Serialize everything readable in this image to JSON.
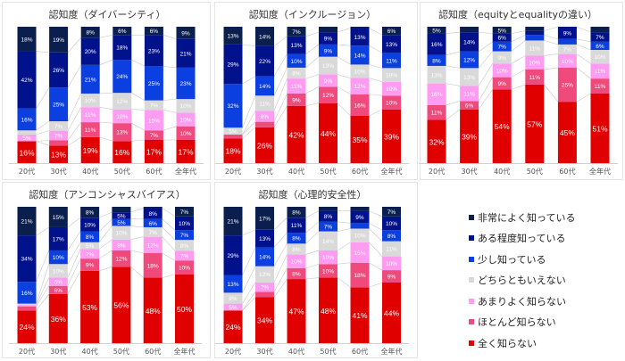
{
  "chart_data": [
    {
      "type": "bar",
      "stacked": true,
      "title": "認知度（ダイバーシティ）",
      "categories": [
        "20代",
        "30代",
        "40代",
        "50代",
        "60代",
        "全年代"
      ],
      "series": [
        {
          "name": "全く知らない",
          "values": [
            16,
            13,
            19,
            16,
            17,
            17
          ]
        },
        {
          "name": "ほとんど知らない",
          "values": [
            0,
            4,
            11,
            13,
            7,
            10
          ]
        },
        {
          "name": "あまりよく知らない",
          "values": [
            5,
            7,
            11,
            10,
            15,
            10
          ]
        },
        {
          "name": "どちらともいえない",
          "values": [
            3,
            7,
            10,
            12,
            7,
            10
          ]
        },
        {
          "name": "少し知っている",
          "values": [
            16,
            25,
            21,
            24,
            25,
            23
          ]
        },
        {
          "name": "ある程度知っている",
          "values": [
            42,
            26,
            20,
            18,
            23,
            21
          ]
        },
        {
          "name": "非常によく知っている",
          "values": [
            18,
            19,
            8,
            6,
            6,
            9
          ]
        }
      ],
      "ylim": [
        0,
        100
      ],
      "unit": "%"
    },
    {
      "type": "bar",
      "stacked": true,
      "title": "認知度（インクルージョン）",
      "categories": [
        "20代",
        "30代",
        "40代",
        "50代",
        "60代",
        "全年代"
      ],
      "series": [
        {
          "name": "全く知らない",
          "values": [
            18,
            26,
            42,
            44,
            35,
            39
          ]
        },
        {
          "name": "ほとんど知らない",
          "values": [
            3,
            4,
            9,
            12,
            16,
            10
          ]
        },
        {
          "name": "あまりよく知らない",
          "values": [
            0,
            8,
            11,
            9,
            12,
            10
          ]
        },
        {
          "name": "どちらともいえない",
          "values": [
            5,
            11,
            8,
            13,
            10,
            10
          ]
        },
        {
          "name": "少し知っている",
          "values": [
            32,
            14,
            10,
            9,
            14,
            11
          ]
        },
        {
          "name": "ある程度知っている",
          "values": [
            29,
            22,
            13,
            9,
            13,
            13
          ]
        },
        {
          "name": "非常によく知っている",
          "values": [
            13,
            14,
            7,
            4,
            1,
            6
          ]
        }
      ],
      "ylim": [
        0,
        100
      ],
      "unit": "%"
    },
    {
      "type": "bar",
      "stacked": true,
      "title": "認知度（equityとequalityの違い）",
      "categories": [
        "20代",
        "30代",
        "40代",
        "50代",
        "60代",
        "全年代"
      ],
      "series": [
        {
          "name": "全く知らない",
          "values": [
            32,
            39,
            54,
            57,
            45,
            51
          ]
        },
        {
          "name": "ほとんど知らない",
          "values": [
            11,
            6,
            9,
            11,
            25,
            11
          ]
        },
        {
          "name": "あまりよく知らない",
          "values": [
            16,
            11,
            10,
            10,
            10,
            11
          ]
        },
        {
          "name": "どちらともいえない",
          "values": [
            13,
            13,
            9,
            11,
            7,
            10
          ]
        },
        {
          "name": "少し知っている",
          "values": [
            8,
            12,
            7,
            4,
            4,
            6
          ]
        },
        {
          "name": "ある程度知っている",
          "values": [
            16,
            14,
            6,
            3,
            9,
            7
          ]
        },
        {
          "name": "非常によく知っている",
          "values": [
            5,
            4,
            5,
            3,
            0,
            4
          ]
        }
      ],
      "ylim": [
        0,
        100
      ],
      "unit": "%"
    },
    {
      "type": "bar",
      "stacked": true,
      "title": "認知度（アンコンシャスバイアス）",
      "categories": [
        "20代",
        "30代",
        "40代",
        "50代",
        "60代",
        "全年代"
      ],
      "series": [
        {
          "name": "全く知らない",
          "values": [
            24,
            36,
            53,
            56,
            48,
            50
          ]
        },
        {
          "name": "ほとんど知らない",
          "values": [
            3,
            6,
            9,
            12,
            18,
            10
          ]
        },
        {
          "name": "あまりよく知らない",
          "values": [
            1,
            6,
            7,
            8,
            12,
            7
          ]
        },
        {
          "name": "どちらともいえない",
          "values": [
            1,
            10,
            5,
            10,
            7,
            8
          ]
        },
        {
          "name": "少し知っている",
          "values": [
            16,
            10,
            8,
            5,
            6,
            7
          ]
        },
        {
          "name": "ある程度知っている",
          "values": [
            34,
            17,
            10,
            5,
            8,
            10
          ]
        },
        {
          "name": "非常によく知っている",
          "values": [
            21,
            15,
            8,
            4,
            1,
            7
          ]
        }
      ],
      "ylim": [
        0,
        100
      ],
      "unit": "%"
    },
    {
      "type": "bar",
      "stacked": true,
      "title": "認知度（心理的安全性）",
      "categories": [
        "20代",
        "30代",
        "40代",
        "50代",
        "60代",
        "全年代"
      ],
      "series": [
        {
          "name": "全く知らない",
          "values": [
            24,
            34,
            47,
            48,
            41,
            44
          ]
        },
        {
          "name": "ほとんど知らない",
          "values": [
            0,
            4,
            8,
            10,
            18,
            9
          ]
        },
        {
          "name": "あまりよく知らない",
          "values": [
            5,
            7,
            10,
            10,
            15,
            10
          ]
        },
        {
          "name": "どちらともいえない",
          "values": [
            8,
            12,
            8,
            14,
            10,
            11
          ]
        },
        {
          "name": "少し知っている",
          "values": [
            13,
            14,
            8,
            7,
            4,
            8
          ]
        },
        {
          "name": "ある程度知っている",
          "values": [
            29,
            13,
            11,
            8,
            9,
            10
          ]
        },
        {
          "name": "非常によく知っている",
          "values": [
            21,
            17,
            8,
            3,
            3,
            7
          ]
        }
      ],
      "ylim": [
        0,
        100
      ],
      "unit": "%"
    }
  ],
  "legend": {
    "placement": "bottom-right",
    "items": [
      {
        "label": "非常によく知っている",
        "color": "#0b1f4e"
      },
      {
        "label": "ある程度知っている",
        "color": "#00118c"
      },
      {
        "label": "少し知っている",
        "color": "#0b3fe0"
      },
      {
        "label": "どちらともいえない",
        "color": "#d9d9d9"
      },
      {
        "label": "あまりよく知らない",
        "color": "#fd9cf0"
      },
      {
        "label": "ほとんど知らない",
        "color": "#f04a7c"
      },
      {
        "label": "全く知らない",
        "color": "#e10000"
      }
    ]
  },
  "series_colors": {
    "全く知らない": "#e10000",
    "ほとんど知らない": "#f04a7c",
    "あまりよく知らない": "#fd9cf0",
    "どちらともいえない": "#d9d9d9",
    "少し知っている": "#0b3fe0",
    "ある程度知っている": "#00118c",
    "非常によく知っている": "#0b1f4e"
  }
}
